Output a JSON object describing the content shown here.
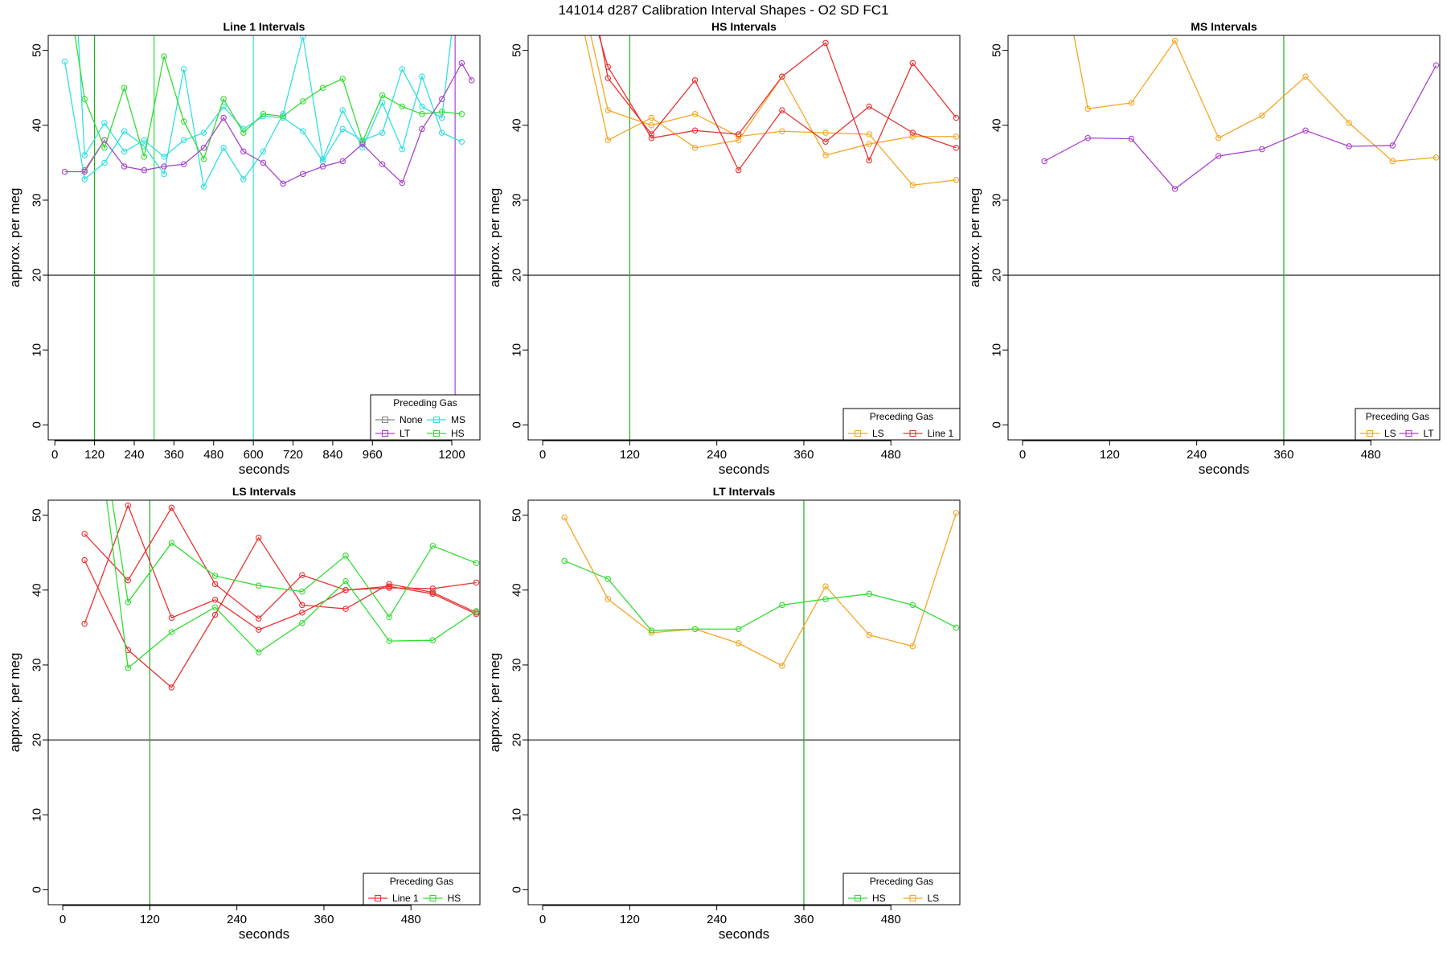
{
  "page_title": "141014    d287    Calibration Interval Shapes - O2 SD FC1",
  "chart_data": [
    {
      "type": "line",
      "title": "Line 1 Intervals",
      "xlabel": "seconds",
      "ylabel": "approx. per meg",
      "xlim": [
        -20,
        1285
      ],
      "ylim": [
        -2,
        52
      ],
      "xticks": [
        0,
        120,
        240,
        360,
        480,
        600,
        720,
        840,
        960,
        1200
      ],
      "yticks": [
        0,
        10,
        20,
        30,
        40,
        50
      ],
      "hline": 20,
      "vlines": [
        {
          "x": 120,
          "color": "#22aa22"
        },
        {
          "x": 300,
          "color": "#33dd33"
        },
        {
          "x": 600,
          "color": "#33e0e0"
        },
        {
          "x": 1210,
          "color": "#aa44cc"
        }
      ],
      "legend": {
        "title": "Preceding Gas",
        "position": "bottom-right",
        "columns": 2,
        "entries": [
          {
            "name": "None",
            "color": "#888888"
          },
          {
            "name": "MS",
            "color": "#33e0e0"
          },
          {
            "name": "LT",
            "color": "#aa44cc"
          },
          {
            "name": "HS",
            "color": "#33dd33"
          }
        ]
      },
      "series": [
        {
          "name": "MS",
          "color": "#33e0e0",
          "x": [
            30,
            90,
            150,
            210,
            270,
            330,
            390,
            450,
            510,
            570,
            630,
            690,
            750,
            810,
            870,
            930,
            990,
            1050,
            1110,
            1170,
            1230
          ],
          "y": [
            48.5,
            32.8,
            35.0,
            39.2,
            37.2,
            33.5,
            47.5,
            31.8,
            37.0,
            32.8,
            36.5,
            41.5,
            51.8,
            35.5,
            42.0,
            37.0,
            43.0,
            36.8,
            46.5,
            39.0,
            37.8
          ]
        },
        {
          "name": "MS",
          "color": "#33e0e0",
          "x": [
            60,
            90,
            150,
            210,
            270,
            330,
            390,
            450,
            510,
            570,
            630,
            690,
            750,
            810,
            870,
            930,
            990,
            1050,
            1110,
            1170,
            1225
          ],
          "y": [
            61.0,
            36.0,
            40.3,
            36.5,
            38.0,
            35.8,
            38.0,
            39.0,
            42.5,
            39.5,
            41.2,
            41.0,
            39.2,
            35.2,
            39.5,
            38.0,
            39.0,
            47.5,
            42.5,
            41.0,
            62.0
          ]
        },
        {
          "name": "HS",
          "color": "#33dd33",
          "x": [
            30,
            90,
            150,
            210,
            270,
            330,
            390,
            450,
            510,
            570,
            630,
            690,
            750,
            810,
            870,
            930,
            990,
            1050,
            1110,
            1170,
            1230
          ],
          "y": [
            61.0,
            43.5,
            37.0,
            45.0,
            35.8,
            49.2,
            40.5,
            35.5,
            43.5,
            39.0,
            41.5,
            41.2,
            43.2,
            45.0,
            46.2,
            37.8,
            44.0,
            42.5,
            41.5,
            41.8,
            41.5
          ]
        },
        {
          "name": "LT",
          "color": "#aa44cc",
          "x": [
            30,
            90,
            150,
            210,
            270,
            330,
            390,
            450,
            510,
            570,
            630,
            690,
            750,
            810,
            870,
            930,
            990,
            1050,
            1110,
            1170,
            1230,
            1260
          ],
          "y": [
            33.8,
            33.8,
            38.0,
            34.5,
            34.0,
            34.5,
            34.8,
            37.0,
            41.0,
            36.5,
            35.0,
            32.2,
            33.5,
            34.5,
            35.2,
            37.5,
            34.8,
            32.3,
            39.5,
            43.5,
            48.3,
            46.0
          ]
        },
        {
          "name": "None",
          "color": "#888888",
          "x": [
            90,
            150
          ],
          "y": [
            34.0,
            38.0
          ]
        }
      ]
    },
    {
      "type": "line",
      "title": "HS Intervals",
      "xlabel": "seconds",
      "ylabel": "approx. per meg",
      "xlim": [
        -20,
        575
      ],
      "ylim": [
        -2,
        52
      ],
      "xticks": [
        0,
        120,
        240,
        360,
        480
      ],
      "yticks": [
        0,
        10,
        20,
        30,
        40,
        50
      ],
      "hline": 20,
      "vlines": [
        {
          "x": 120,
          "color": "#22aa22"
        }
      ],
      "legend": {
        "title": "Preceding Gas",
        "position": "bottom-right",
        "columns": 2,
        "entries": [
          {
            "name": "LS",
            "color": "#f5a623"
          },
          {
            "name": "Line 1",
            "color": "#e83333"
          }
        ]
      },
      "series": [
        {
          "name": "LS",
          "color": "#f5a623",
          "x": [
            40,
            90,
            150,
            210,
            270,
            330,
            390,
            450,
            510,
            570
          ],
          "y": [
            60.0,
            38.0,
            41.0,
            37.0,
            38.0,
            46.5,
            36.0,
            37.5,
            38.5,
            38.5
          ]
        },
        {
          "name": "LS",
          "color": "#f5a623",
          "x": [
            45,
            90,
            150,
            210,
            270,
            330,
            390,
            450,
            510,
            570
          ],
          "y": [
            61.0,
            42.0,
            40.0,
            41.5,
            38.5,
            39.2,
            39.0,
            38.8,
            32.0,
            32.7
          ]
        },
        {
          "name": "Line 1",
          "color": "#e83333",
          "x": [
            60,
            90,
            150,
            210,
            270,
            330,
            390,
            450,
            510,
            570
          ],
          "y": [
            58.0,
            47.8,
            38.3,
            39.3,
            38.8,
            46.5,
            51.0,
            35.3,
            48.3,
            41.0
          ]
        },
        {
          "name": "Line 1",
          "color": "#e83333",
          "x": [
            65,
            90,
            150,
            210,
            270,
            330,
            390,
            450,
            510,
            570
          ],
          "y": [
            59.0,
            46.3,
            38.8,
            46.0,
            34.0,
            42.0,
            37.8,
            42.5,
            39.0,
            37.0
          ]
        }
      ]
    },
    {
      "type": "line",
      "title": "MS Intervals",
      "xlabel": "seconds",
      "ylabel": "approx. per meg",
      "xlim": [
        -20,
        575
      ],
      "ylim": [
        -2,
        52
      ],
      "xticks": [
        0,
        120,
        240,
        360,
        480
      ],
      "yticks": [
        0,
        10,
        20,
        30,
        40,
        50
      ],
      "hline": 20,
      "vlines": [
        {
          "x": 360,
          "color": "#22aa22"
        }
      ],
      "legend": {
        "title": "Preceding Gas",
        "position": "bottom-right",
        "columns": 2,
        "entries": [
          {
            "name": "LS",
            "color": "#f5a623"
          },
          {
            "name": "LT",
            "color": "#aa44cc"
          }
        ]
      },
      "series": [
        {
          "name": "LS",
          "color": "#f5a623",
          "x": [
            55,
            90,
            150,
            210,
            270,
            330,
            390,
            450,
            510,
            570
          ],
          "y": [
            60.0,
            42.2,
            43.0,
            51.3,
            38.3,
            41.3,
            46.5,
            40.3,
            35.2,
            35.7
          ]
        },
        {
          "name": "LT",
          "color": "#aa44cc",
          "x": [
            30,
            90,
            150,
            210,
            270,
            330,
            390,
            450,
            510,
            570
          ],
          "y": [
            35.2,
            38.3,
            38.2,
            31.5,
            35.9,
            36.8,
            39.3,
            37.2,
            37.3,
            48.0
          ]
        }
      ]
    },
    {
      "type": "line",
      "title": "LS Intervals",
      "xlabel": "seconds",
      "ylabel": "approx. per meg",
      "xlim": [
        -20,
        575
      ],
      "ylim": [
        -2,
        52
      ],
      "xticks": [
        0,
        120,
        240,
        360,
        480
      ],
      "yticks": [
        0,
        10,
        20,
        30,
        40,
        50
      ],
      "hline": 20,
      "vlines": [
        {
          "x": 120,
          "color": "#22aa22"
        }
      ],
      "legend": {
        "title": "Preceding Gas",
        "position": "bottom-right",
        "columns": 2,
        "entries": [
          {
            "name": "Line 1",
            "color": "#e83333"
          },
          {
            "name": "HS",
            "color": "#33dd33"
          }
        ]
      },
      "series": [
        {
          "name": "Line 1",
          "color": "#e83333",
          "x": [
            30,
            90,
            150,
            210,
            270,
            330,
            390,
            450,
            510,
            570
          ],
          "y": [
            47.5,
            41.3,
            51.0,
            40.8,
            36.2,
            42.0,
            40.0,
            40.3,
            40.2,
            41.0
          ]
        },
        {
          "name": "Line 1",
          "color": "#e83333",
          "x": [
            30,
            90,
            150,
            210,
            270,
            330,
            390,
            450,
            510,
            570
          ],
          "y": [
            44.0,
            32.0,
            27.0,
            36.7,
            47.0,
            38.0,
            37.5,
            40.8,
            39.7,
            37.0
          ]
        },
        {
          "name": "Line 1",
          "color": "#e83333",
          "x": [
            30,
            90,
            150,
            210,
            270,
            330,
            390,
            450,
            510,
            570
          ],
          "y": [
            35.5,
            51.3,
            36.3,
            38.7,
            34.7,
            37.0,
            40.0,
            40.5,
            39.5,
            36.8
          ]
        },
        {
          "name": "HS",
          "color": "#33dd33",
          "x": [
            50,
            90,
            150,
            210,
            270,
            330,
            390,
            450,
            510,
            570
          ],
          "y": [
            60.0,
            29.6,
            34.4,
            37.7,
            31.7,
            35.6,
            41.2,
            33.2,
            33.3,
            37.2
          ]
        },
        {
          "name": "HS",
          "color": "#33dd33",
          "x": [
            55,
            90,
            150,
            210,
            270,
            330,
            390,
            450,
            510,
            570
          ],
          "y": [
            60.0,
            38.4,
            46.3,
            41.9,
            40.6,
            39.8,
            44.6,
            36.4,
            45.9,
            43.6
          ]
        }
      ]
    },
    {
      "type": "line",
      "title": "LT Intervals",
      "xlabel": "seconds",
      "ylabel": "approx. per meg",
      "xlim": [
        -20,
        575
      ],
      "ylim": [
        -2,
        52
      ],
      "xticks": [
        0,
        120,
        240,
        360,
        480
      ],
      "yticks": [
        0,
        10,
        20,
        30,
        40,
        50
      ],
      "hline": 20,
      "vlines": [
        {
          "x": 360,
          "color": "#22aa22"
        }
      ],
      "legend": {
        "title": "Preceding Gas",
        "position": "bottom-right",
        "columns": 2,
        "entries": [
          {
            "name": "HS",
            "color": "#33dd33"
          },
          {
            "name": "LS",
            "color": "#f5a623"
          }
        ]
      },
      "series": [
        {
          "name": "LS",
          "color": "#f5a623",
          "x": [
            30,
            90,
            150,
            210,
            270,
            330,
            390,
            450,
            510,
            570
          ],
          "y": [
            49.7,
            38.8,
            34.3,
            34.8,
            32.9,
            29.9,
            40.5,
            34.0,
            32.5,
            50.3
          ]
        },
        {
          "name": "HS",
          "color": "#33dd33",
          "x": [
            30,
            90,
            150,
            210,
            270,
            330,
            390,
            450,
            510,
            570
          ],
          "y": [
            43.9,
            41.5,
            34.6,
            34.8,
            34.8,
            38.0,
            38.8,
            39.5,
            38.0,
            35.0
          ]
        }
      ]
    }
  ]
}
